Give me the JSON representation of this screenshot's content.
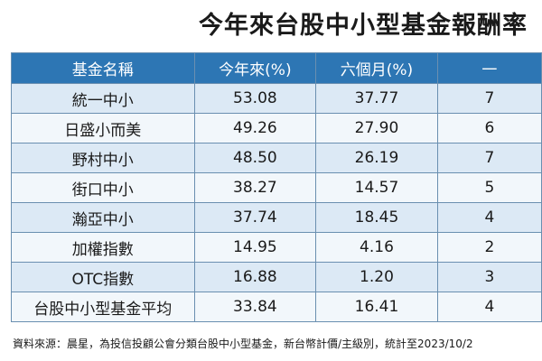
{
  "title": "今年來台股中小型基金報酬率",
  "table": {
    "headers": [
      "基金名稱",
      "今年來(%)",
      "六個月(%)",
      "一"
    ],
    "rows": [
      {
        "name": "統一中小",
        "ytd": "53.08",
        "six_month": "37.77",
        "partial": "7"
      },
      {
        "name": "日盛小而美",
        "ytd": "49.26",
        "six_month": "27.90",
        "partial": "6"
      },
      {
        "name": "野村中小",
        "ytd": "48.50",
        "six_month": "26.19",
        "partial": "7"
      },
      {
        "name": "街口中小",
        "ytd": "38.27",
        "six_month": "14.57",
        "partial": "5"
      },
      {
        "name": "瀚亞中小",
        "ytd": "37.74",
        "six_month": "18.45",
        "partial": "4"
      },
      {
        "name": "加權指數",
        "ytd": "14.95",
        "six_month": "4.16",
        "partial": "2"
      },
      {
        "name": "OTC指數",
        "ytd": "16.88",
        "six_month": "1.20",
        "partial": "3"
      },
      {
        "name": "台股中小型基金平均",
        "ytd": "33.84",
        "six_month": "16.41",
        "partial": "4"
      }
    ]
  },
  "source": "資料來源：晨星，為投信投顧公會分類台股中小型基金，新台幣計價/主級別，統計至2023/10/2"
}
